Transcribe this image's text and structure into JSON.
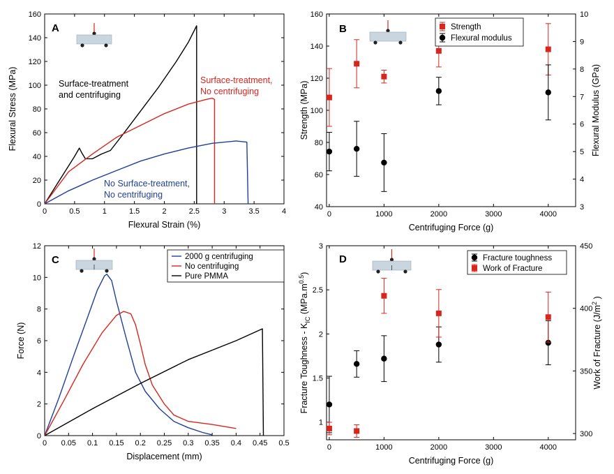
{
  "chart_data": [
    {
      "panel": "A",
      "type": "line",
      "xlabel": "Flexural Strain (%)",
      "ylabel": "Flexural Stress (MPa)",
      "xlim": [
        0,
        4
      ],
      "ylim": [
        0,
        160
      ],
      "xticks": [
        "0",
        "0.5",
        "1",
        "1.5",
        "2",
        "2.5",
        "3",
        "3.5",
        "4"
      ],
      "yticks": [
        "0",
        "20",
        "40",
        "60",
        "80",
        "100",
        "120",
        "140",
        "160"
      ],
      "annotations": [
        {
          "lines": [
            "Surface-treatment",
            "and centrifuging"
          ],
          "color": "#000000"
        },
        {
          "lines": [
            "Surface-treatment,",
            "No centrifuging"
          ],
          "color": "#d7261e"
        },
        {
          "lines": [
            "No Surface-treatment,",
            "No centrifuging"
          ],
          "color": "#1f3f99"
        }
      ],
      "series": [
        {
          "name": "Surface-treatment and centrifuging",
          "color": "#000000",
          "points": [
            [
              0,
              0
            ],
            [
              0.3,
              24
            ],
            [
              0.5,
              40
            ],
            [
              0.58,
              47
            ],
            [
              0.62,
              43
            ],
            [
              0.68,
              38
            ],
            [
              0.8,
              38
            ],
            [
              0.95,
              42
            ],
            [
              1.1,
              45
            ],
            [
              1.3,
              58
            ],
            [
              1.6,
              78
            ],
            [
              1.9,
              98
            ],
            [
              2.2,
              120
            ],
            [
              2.4,
              136
            ],
            [
              2.54,
              150
            ],
            [
              2.54,
              0
            ]
          ]
        },
        {
          "name": "Surface-treatment, No centrifuging",
          "color": "#d7261e",
          "points": [
            [
              0,
              0
            ],
            [
              0.4,
              27
            ],
            [
              0.8,
              42
            ],
            [
              1.2,
              56
            ],
            [
              1.6,
              66
            ],
            [
              2.0,
              76
            ],
            [
              2.4,
              84
            ],
            [
              2.7,
              88
            ],
            [
              2.8,
              89
            ],
            [
              2.84,
              88
            ],
            [
              2.84,
              0
            ]
          ]
        },
        {
          "name": "No Surface-treatment, No centrifuging",
          "color": "#1f3f99",
          "points": [
            [
              0,
              0
            ],
            [
              0.4,
              11
            ],
            [
              0.8,
              20
            ],
            [
              1.2,
              28
            ],
            [
              1.6,
              36
            ],
            [
              2.0,
              42
            ],
            [
              2.4,
              47
            ],
            [
              2.8,
              51
            ],
            [
              3.2,
              53
            ],
            [
              3.38,
              52
            ],
            [
              3.4,
              0
            ]
          ]
        }
      ]
    },
    {
      "panel": "B",
      "type": "scatter",
      "xlabel": "Centrifuging Force (g)",
      "ylabel": "Strength (MPa)",
      "y2label": "Flexural Modulus (GPa)",
      "xlim": [
        -50,
        4500
      ],
      "ylim": [
        40,
        160
      ],
      "y2lim": [
        3,
        10
      ],
      "xticks": [
        "0",
        "1000",
        "2000",
        "3000",
        "4000"
      ],
      "yticks": [
        "40",
        "60",
        "80",
        "100",
        "120",
        "140",
        "160"
      ],
      "y2ticks": [
        "3",
        "4",
        "5",
        "6",
        "7",
        "8",
        "9",
        "10"
      ],
      "legend": {
        "position": "top-right",
        "entries": [
          "Strength",
          "Flexural modulus"
        ]
      },
      "series": [
        {
          "name": "Strength",
          "color": "#d7261e",
          "marker": "square",
          "axis": "left",
          "points": [
            {
              "x": 0,
              "y": 108,
              "err": 18
            },
            {
              "x": 500,
              "y": 129,
              "err": 15
            },
            {
              "x": 1000,
              "y": 121,
              "err": 4
            },
            {
              "x": 2000,
              "y": 137,
              "err": 10
            },
            {
              "x": 4000,
              "y": 138,
              "err": 16
            }
          ]
        },
        {
          "name": "Flexural modulus",
          "color": "#000000",
          "marker": "circle",
          "axis": "right",
          "points": [
            {
              "x": 0,
              "y": 5.0,
              "err": 0.7
            },
            {
              "x": 500,
              "y": 5.1,
              "err": 1.0
            },
            {
              "x": 1000,
              "y": 4.6,
              "err": 1.05
            },
            {
              "x": 2000,
              "y": 7.2,
              "err": 0.5
            },
            {
              "x": 4000,
              "y": 7.15,
              "err": 1.0
            }
          ]
        }
      ]
    },
    {
      "panel": "C",
      "type": "line",
      "xlabel": "Displacement (mm)",
      "ylabel": "Force (N)",
      "xlim": [
        0,
        0.5
      ],
      "ylim": [
        0,
        12
      ],
      "xticks": [
        "0",
        "0.05",
        "0.1",
        "0.15",
        "0.2",
        "0.25",
        "0.3",
        "0.35",
        "0.4",
        "0.45",
        "0.5"
      ],
      "yticks": [
        "0",
        "2",
        "4",
        "6",
        "8",
        "10",
        "12"
      ],
      "legend": {
        "position": "top-right",
        "entries": [
          "2000 g centrifuging",
          "No centrifuging",
          "Pure PMMA"
        ]
      },
      "series": [
        {
          "name": "2000 g centrifuging",
          "color": "#1f3f99",
          "points": [
            [
              0,
              0
            ],
            [
              0.03,
              2.4
            ],
            [
              0.06,
              5.0
            ],
            [
              0.09,
              7.5
            ],
            [
              0.11,
              9.2
            ],
            [
              0.125,
              10.1
            ],
            [
              0.13,
              10.2
            ],
            [
              0.14,
              9.8
            ],
            [
              0.15,
              8.5
            ],
            [
              0.17,
              6.2
            ],
            [
              0.19,
              4.0
            ],
            [
              0.21,
              2.8
            ],
            [
              0.24,
              1.7
            ],
            [
              0.27,
              0.9
            ],
            [
              0.3,
              0.5
            ],
            [
              0.33,
              0.2
            ],
            [
              0.35,
              0.05
            ]
          ]
        },
        {
          "name": "No centrifuging",
          "color": "#d7261e",
          "points": [
            [
              0,
              0
            ],
            [
              0.04,
              2.2
            ],
            [
              0.08,
              4.5
            ],
            [
              0.12,
              6.5
            ],
            [
              0.15,
              7.6
            ],
            [
              0.165,
              7.85
            ],
            [
              0.18,
              7.7
            ],
            [
              0.19,
              7.0
            ],
            [
              0.2,
              5.8
            ],
            [
              0.21,
              4.5
            ],
            [
              0.225,
              3.2
            ],
            [
              0.25,
              2.0
            ],
            [
              0.27,
              1.3
            ],
            [
              0.3,
              0.9
            ],
            [
              0.35,
              0.7
            ],
            [
              0.4,
              0.45
            ]
          ]
        },
        {
          "name": "Pure PMMA",
          "color": "#000000",
          "points": [
            [
              0,
              0
            ],
            [
              0.1,
              1.7
            ],
            [
              0.2,
              3.3
            ],
            [
              0.3,
              4.8
            ],
            [
              0.4,
              6.0
            ],
            [
              0.455,
              6.75
            ],
            [
              0.457,
              0
            ]
          ]
        }
      ]
    },
    {
      "panel": "D",
      "type": "scatter",
      "xlabel": "Centrifuging Force (g)",
      "ylabel": "Fracture Toughness - K_IC (MPa.m^0.5)",
      "y2label": "Work of Fracture (J/m^2)",
      "xlim": [
        -50,
        4500
      ],
      "ylim": [
        0.8,
        3.0
      ],
      "y2lim": [
        295,
        450
      ],
      "xticks": [
        "0",
        "1000",
        "2000",
        "3000",
        "4000"
      ],
      "yticks": [
        "1",
        "1.5",
        "2",
        "2.5",
        "3"
      ],
      "y2ticks": [
        "300",
        "350",
        "400",
        "450"
      ],
      "legend": {
        "position": "top-right",
        "entries": [
          "Fracture toughness",
          "Work of Fracture"
        ]
      },
      "series": [
        {
          "name": "Fracture toughness",
          "color": "#000000",
          "marker": "circle",
          "axis": "left",
          "points": [
            {
              "x": 0,
              "y": 1.2,
              "err": 0.32
            },
            {
              "x": 500,
              "y": 1.66,
              "err": 0.15
            },
            {
              "x": 1000,
              "y": 1.72,
              "err": 0.26
            },
            {
              "x": 2000,
              "y": 1.88,
              "err": 0.2
            },
            {
              "x": 4000,
              "y": 1.9,
              "err": 0.25
            }
          ]
        },
        {
          "name": "Work of Fracture",
          "color": "#d7261e",
          "marker": "square",
          "axis": "right",
          "points": [
            {
              "x": 0,
              "y": 304,
              "err": 5
            },
            {
              "x": 500,
              "y": 302,
              "err": 5
            },
            {
              "x": 1000,
              "y": 410,
              "err": 14
            },
            {
              "x": 2000,
              "y": 396,
              "err": 19
            },
            {
              "x": 4000,
              "y": 393,
              "err": 20
            }
          ]
        }
      ]
    }
  ]
}
